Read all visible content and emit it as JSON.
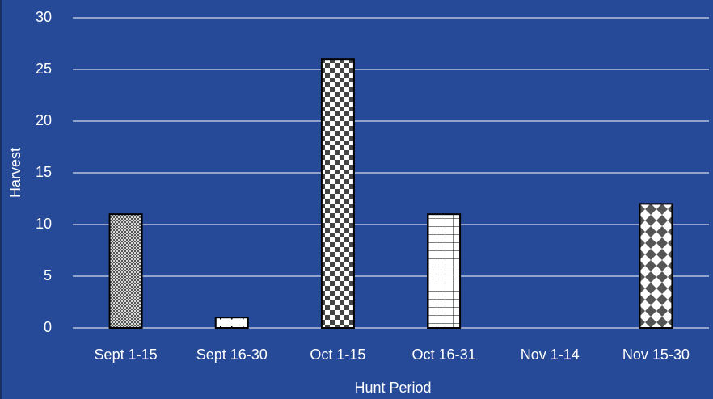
{
  "chart_data": {
    "type": "bar",
    "categories": [
      "Sept 1-15",
      "Sept 16-30",
      "Oct 1-15",
      "Oct 16-31",
      "Nov 1-14",
      "Nov 15-30"
    ],
    "values": [
      11,
      1,
      26,
      11,
      0,
      12
    ],
    "ylim": [
      0,
      30
    ],
    "yticks": [
      0,
      5,
      10,
      15,
      20,
      25,
      30
    ],
    "grid": true,
    "x_label": "Hunt Period",
    "y_label": "Harvest"
  }
}
